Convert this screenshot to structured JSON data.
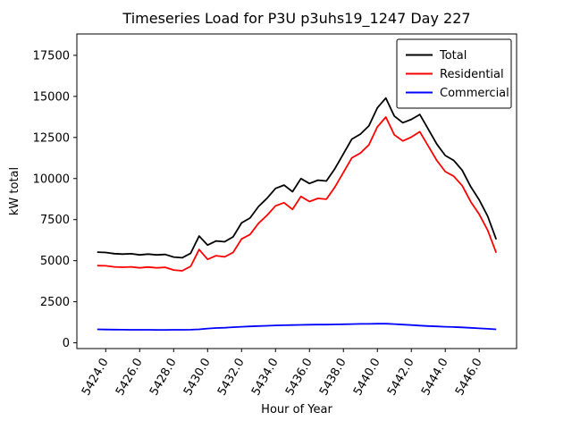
{
  "chart_data": {
    "type": "line",
    "title": "Timeseries Load for P3U p3uhs19_1247  Day 227",
    "xlabel": "Hour of Year",
    "ylabel": "kW total",
    "grid": false,
    "legend_position": "upper right",
    "xlim": [
      5422.3,
      5448.2
    ],
    "ylim": [
      -350,
      18800
    ],
    "xticks": [
      5424,
      5426,
      5428,
      5430,
      5432,
      5434,
      5436,
      5438,
      5440,
      5442,
      5444,
      5446
    ],
    "xtick_labels": [
      "5424.0",
      "5426.0",
      "5428.0",
      "5430.0",
      "5432.0",
      "5434.0",
      "5436.0",
      "5438.0",
      "5440.0",
      "5442.0",
      "5444.0",
      "5446.0"
    ],
    "yticks": [
      0,
      2500,
      5000,
      7500,
      10000,
      12500,
      15000,
      17500
    ],
    "ytick_labels": [
      "0",
      "2500",
      "5000",
      "7500",
      "10000",
      "12500",
      "15000",
      "17500"
    ],
    "x": [
      5423.5,
      5424,
      5424.5,
      5425,
      5425.5,
      5426,
      5426.5,
      5427,
      5427.5,
      5428,
      5428.5,
      5429,
      5429.5,
      5430,
      5430.5,
      5431,
      5431.5,
      5432,
      5432.5,
      5433,
      5433.5,
      5434,
      5434.5,
      5435,
      5435.5,
      5436,
      5436.5,
      5437,
      5437.5,
      5438,
      5438.5,
      5439,
      5439.5,
      5440,
      5440.5,
      5441,
      5441.5,
      5442,
      5442.5,
      5443,
      5443.5,
      5444,
      5444.5,
      5445,
      5445.5,
      5446,
      5446.5,
      5447
    ],
    "series": [
      {
        "name": "Total",
        "color": "#000000",
        "values": [
          5520,
          5500,
          5430,
          5400,
          5420,
          5350,
          5400,
          5350,
          5380,
          5220,
          5180,
          5450,
          6500,
          5950,
          6200,
          6150,
          6450,
          7300,
          7600,
          8300,
          8800,
          9400,
          9600,
          9200,
          10000,
          9700,
          9900,
          9850,
          10600,
          11500,
          12400,
          12700,
          13200,
          14300,
          14900,
          13800,
          13400,
          13600,
          13900,
          13000,
          12100,
          11400,
          11100,
          10500,
          9500,
          8700,
          7700,
          6300
        ]
      },
      {
        "name": "Residential",
        "color": "#ff0000",
        "values": [
          4700,
          4690,
          4625,
          4600,
          4625,
          4560,
          4610,
          4565,
          4595,
          4430,
          4385,
          4650,
          5680,
          5080,
          5300,
          5230,
          5500,
          6320,
          6600,
          7280,
          7760,
          8340,
          8530,
          8120,
          8910,
          8600,
          8790,
          8740,
          9480,
          10370,
          11260,
          11550,
          12050,
          13140,
          13740,
          12660,
          12290,
          12520,
          12850,
          11980,
          11100,
          10420,
          10140,
          9560,
          8590,
          7820,
          6850,
          5480
        ]
      },
      {
        "name": "Commercial",
        "color": "#0000ff",
        "values": [
          820,
          810,
          805,
          800,
          795,
          790,
          790,
          785,
          785,
          790,
          795,
          800,
          820,
          870,
          900,
          920,
          950,
          980,
          1000,
          1020,
          1040,
          1060,
          1070,
          1080,
          1090,
          1100,
          1110,
          1110,
          1120,
          1130,
          1140,
          1150,
          1150,
          1160,
          1160,
          1140,
          1110,
          1080,
          1050,
          1020,
          1000,
          980,
          960,
          940,
          910,
          880,
          850,
          820
        ]
      }
    ]
  }
}
